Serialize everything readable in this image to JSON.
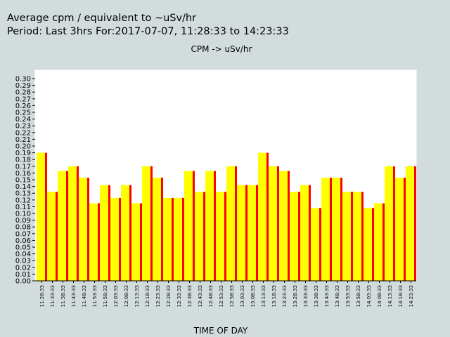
{
  "header": {
    "title": "Average cpm / equivalent to ~uSv/hr",
    "period": "Period: Last 3hrs For:2017-07-07, 11:28:33 to 14:23:33"
  },
  "chart_data": {
    "type": "bar",
    "title": "CPM -> uSv/hr",
    "xlabel": "TIME OF DAY",
    "ylabel": "",
    "ylim": [
      0,
      0.31
    ],
    "yticks": [
      "0.00",
      "0.01",
      "0.02",
      "0.03",
      "0.04",
      "0.05",
      "0.06",
      "0.07",
      "0.08",
      "0.09",
      "0.10",
      "0.11",
      "0.12",
      "0.13",
      "0.14",
      "0.15",
      "0.16",
      "0.17",
      "0.18",
      "0.19",
      "0.20",
      "0.21",
      "0.22",
      "0.23",
      "0.24",
      "0.25",
      "0.26",
      "0.27",
      "0.28",
      "0.29",
      "0.30"
    ],
    "grid": false,
    "legend": "none",
    "categories": [
      "11:28:33",
      "11:33:33",
      "11:38:33",
      "11:43:33",
      "11:48:33",
      "11:53:33",
      "11:58:33",
      "12:03:33",
      "12:08:33",
      "12:13:33",
      "12:18:33",
      "12:23:33",
      "12:28:33",
      "12:33:33",
      "12:38:33",
      "12:43:33",
      "12:48:33",
      "12:53:33",
      "12:58:33",
      "13:03:33",
      "13:08:33",
      "13:13:33",
      "13:18:33",
      "13:23:33",
      "13:28:33",
      "13:33:33",
      "13:38:33",
      "13:43:33",
      "13:48:33",
      "13:53:33",
      "13:58:33",
      "14:03:33",
      "14:08:33",
      "14:13:33",
      "14:18:33",
      "14:23:33"
    ],
    "values": [
      0.19,
      0.132,
      0.163,
      0.17,
      0.153,
      0.115,
      0.142,
      0.123,
      0.142,
      0.115,
      0.17,
      0.153,
      0.123,
      0.123,
      0.163,
      0.132,
      0.163,
      0.132,
      0.17,
      0.142,
      0.142,
      0.19,
      0.17,
      0.163,
      0.132,
      0.142,
      0.108,
      0.153,
      0.153,
      0.132,
      0.132,
      0.108,
      0.115,
      0.17,
      0.153,
      0.17
    ],
    "colors": {
      "bar_fill": "#ffff00",
      "bar_edge": "#ff0000",
      "background": "#d3dcdc",
      "plot": "#ffffff"
    }
  }
}
